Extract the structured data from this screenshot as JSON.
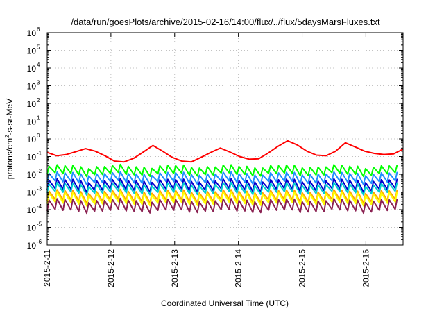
{
  "chart_data": {
    "type": "line",
    "title": "/data/run/goesPlots/archive/2015-02-16/14:00/flux/../flux/5daysMarsFluxes.txt",
    "xlabel": "Coordinated Universal Time (UTC)",
    "ylabel": {
      "prefix": "protons/cm",
      "sup": "2",
      "suffix": "-s-sr-MeV"
    },
    "yscale": "log",
    "ylim_exp": [
      -6,
      6
    ],
    "ytick_base": "10",
    "ytick_exponents": [
      "-6",
      "-5",
      "-4",
      "-3",
      "-2",
      "-1",
      "0",
      "1",
      "2",
      "3",
      "4",
      "5",
      "6"
    ],
    "xlim": [
      "2015-02-11",
      "2015-02-16 14:00"
    ],
    "xticks": [
      "2015-2-11",
      "2015-2-12",
      "2015-2-13",
      "2015-2-14",
      "2015-2-15",
      "2015-2-16"
    ],
    "grid": true,
    "series": [
      {
        "color": "#ff0000",
        "sawtooth": false,
        "points": [
          [
            0.0,
            0.17
          ],
          [
            0.25,
            0.11
          ],
          [
            0.5,
            0.13
          ],
          [
            0.75,
            0.19
          ],
          [
            1.0,
            0.28
          ],
          [
            1.25,
            0.2
          ],
          [
            1.5,
            0.11
          ],
          [
            1.75,
            0.055
          ],
          [
            2.0,
            0.05
          ],
          [
            2.25,
            0.08
          ],
          [
            2.5,
            0.18
          ],
          [
            2.75,
            0.42
          ],
          [
            3.0,
            0.2
          ],
          [
            3.25,
            0.09
          ],
          [
            3.5,
            0.055
          ],
          [
            3.75,
            0.05
          ],
          [
            4.0,
            0.09
          ],
          [
            4.25,
            0.17
          ],
          [
            4.5,
            0.3
          ],
          [
            4.75,
            0.18
          ],
          [
            5.0,
            0.1
          ],
          [
            5.25,
            0.07
          ],
          [
            5.5,
            0.075
          ],
          [
            5.75,
            0.16
          ],
          [
            6.0,
            0.38
          ],
          [
            6.25,
            0.78
          ],
          [
            6.5,
            0.45
          ],
          [
            6.75,
            0.2
          ],
          [
            7.0,
            0.12
          ],
          [
            7.25,
            0.11
          ],
          [
            7.5,
            0.2
          ],
          [
            7.75,
            0.6
          ],
          [
            8.0,
            0.35
          ],
          [
            8.25,
            0.2
          ],
          [
            8.5,
            0.15
          ],
          [
            8.75,
            0.13
          ],
          [
            9.0,
            0.14
          ],
          [
            9.25,
            0.26
          ]
        ]
      },
      {
        "color": "#00ff00",
        "sawtooth": true,
        "peak": 0.028,
        "trough": 0.01
      },
      {
        "color": "#1e90ff",
        "sawtooth": true,
        "peak": 0.011,
        "trough": 0.0035
      },
      {
        "color": "#0000cd",
        "sawtooth": true,
        "peak": 0.0045,
        "trough": 0.0013
      },
      {
        "color": "#00ced1",
        "sawtooth": true,
        "peak": 0.0028,
        "trough": 0.0009
      },
      {
        "color": "#ffa500",
        "sawtooth": true,
        "peak": 0.0011,
        "trough": 0.00032
      },
      {
        "color": "#ffff00",
        "sawtooth": true,
        "peak": 0.00085,
        "trough": 0.00022
      },
      {
        "color": "#8b2252",
        "sawtooth": true,
        "peak": 0.00034,
        "trough": 8.5e-05
      }
    ]
  }
}
